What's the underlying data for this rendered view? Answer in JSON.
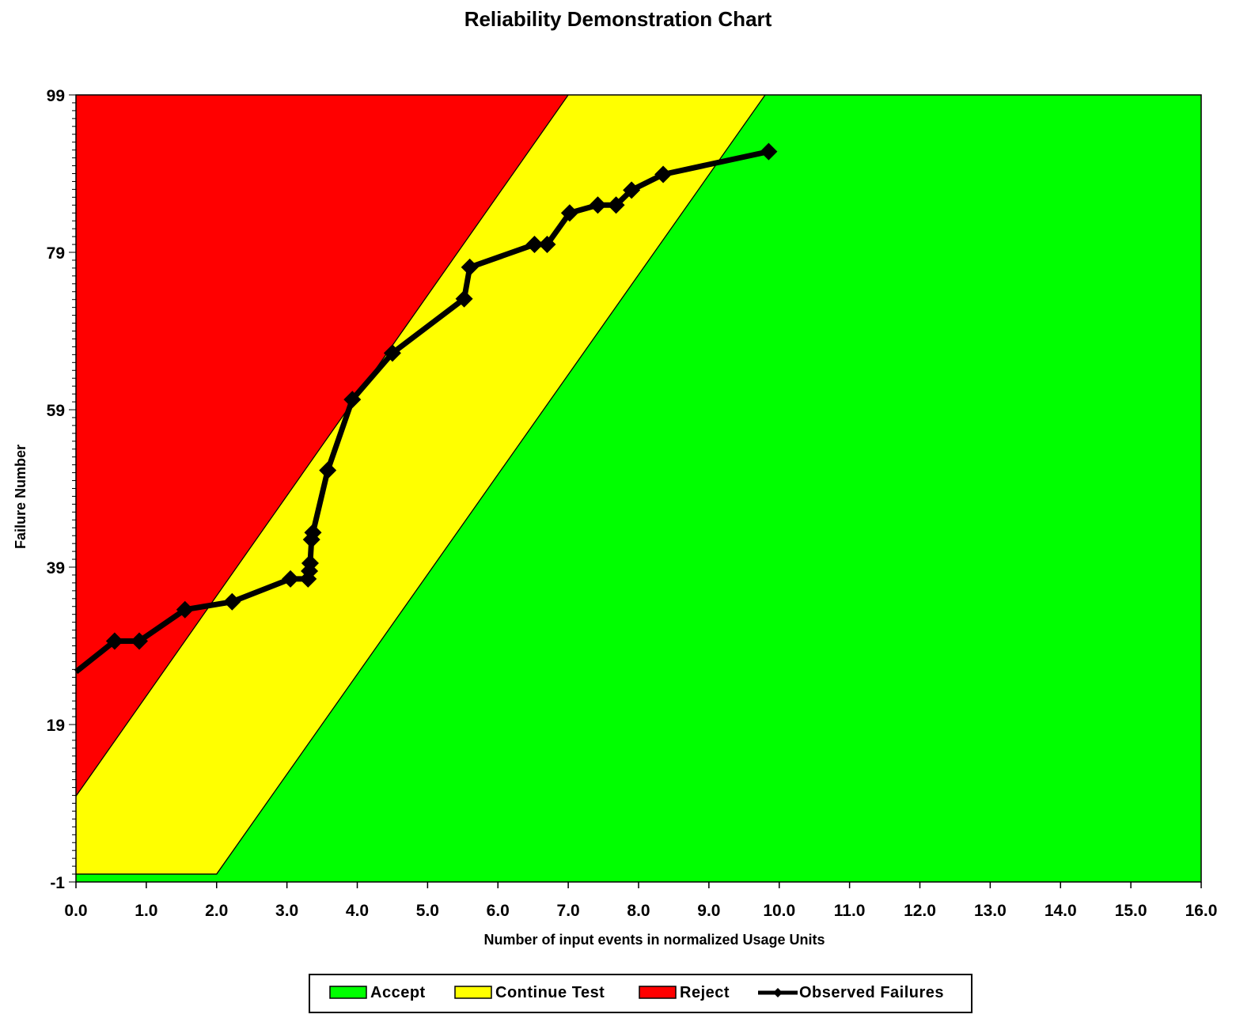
{
  "chart_data": {
    "type": "line",
    "title": "Reliability Demonstration Chart",
    "xlabel": "Number of input events in normalized Usage Units",
    "ylabel": "Failure Number",
    "xlim": [
      0,
      16
    ],
    "ylim": [
      -1,
      99
    ],
    "x_ticks": [
      "0.0",
      "1.0",
      "2.0",
      "3.0",
      "4.0",
      "5.0",
      "6.0",
      "7.0",
      "8.0",
      "9.0",
      "10.0",
      "11.0",
      "12.0",
      "13.0",
      "14.0",
      "15.0",
      "16.0"
    ],
    "y_ticks": [
      "-1",
      "19",
      "39",
      "59",
      "79",
      "99"
    ],
    "regions": [
      {
        "name": "Accept",
        "color": "#00ff00"
      },
      {
        "name": "Continue Test",
        "color": "#ffff00",
        "boundary": [
          [
            0,
            0
          ],
          [
            2.0,
            0
          ],
          [
            9.8,
            99
          ]
        ],
        "upper_boundary": [
          [
            0,
            9.9
          ],
          [
            7.0,
            99
          ]
        ]
      },
      {
        "name": "Reject",
        "color": "#ff0000",
        "boundary": [
          [
            0,
            9.9
          ],
          [
            7.0,
            99
          ]
        ]
      }
    ],
    "series": [
      {
        "name": "Observed Failures",
        "color": "#000000",
        "x": [
          0.0,
          0.55,
          0.9,
          1.55,
          2.22,
          3.05,
          3.3,
          3.32,
          3.33,
          3.35,
          3.37,
          3.58,
          3.93,
          4.5,
          5.52,
          5.6,
          6.52,
          6.7,
          7.02,
          7.42,
          7.68,
          7.9,
          8.35,
          9.85
        ],
        "y": [
          25.7,
          29.6,
          29.6,
          33.6,
          34.6,
          37.5,
          37.5,
          38.5,
          39.5,
          42.5,
          43.4,
          51.3,
          60.3,
          66.2,
          73.1,
          77.1,
          80.0,
          80.0,
          84.0,
          85.0,
          85.0,
          86.9,
          88.9,
          91.8
        ]
      }
    ],
    "legend": {
      "placement": "bottom",
      "entries": [
        "Accept",
        "Continue Test",
        "Reject",
        "Observed Failures"
      ]
    },
    "grid": false
  }
}
